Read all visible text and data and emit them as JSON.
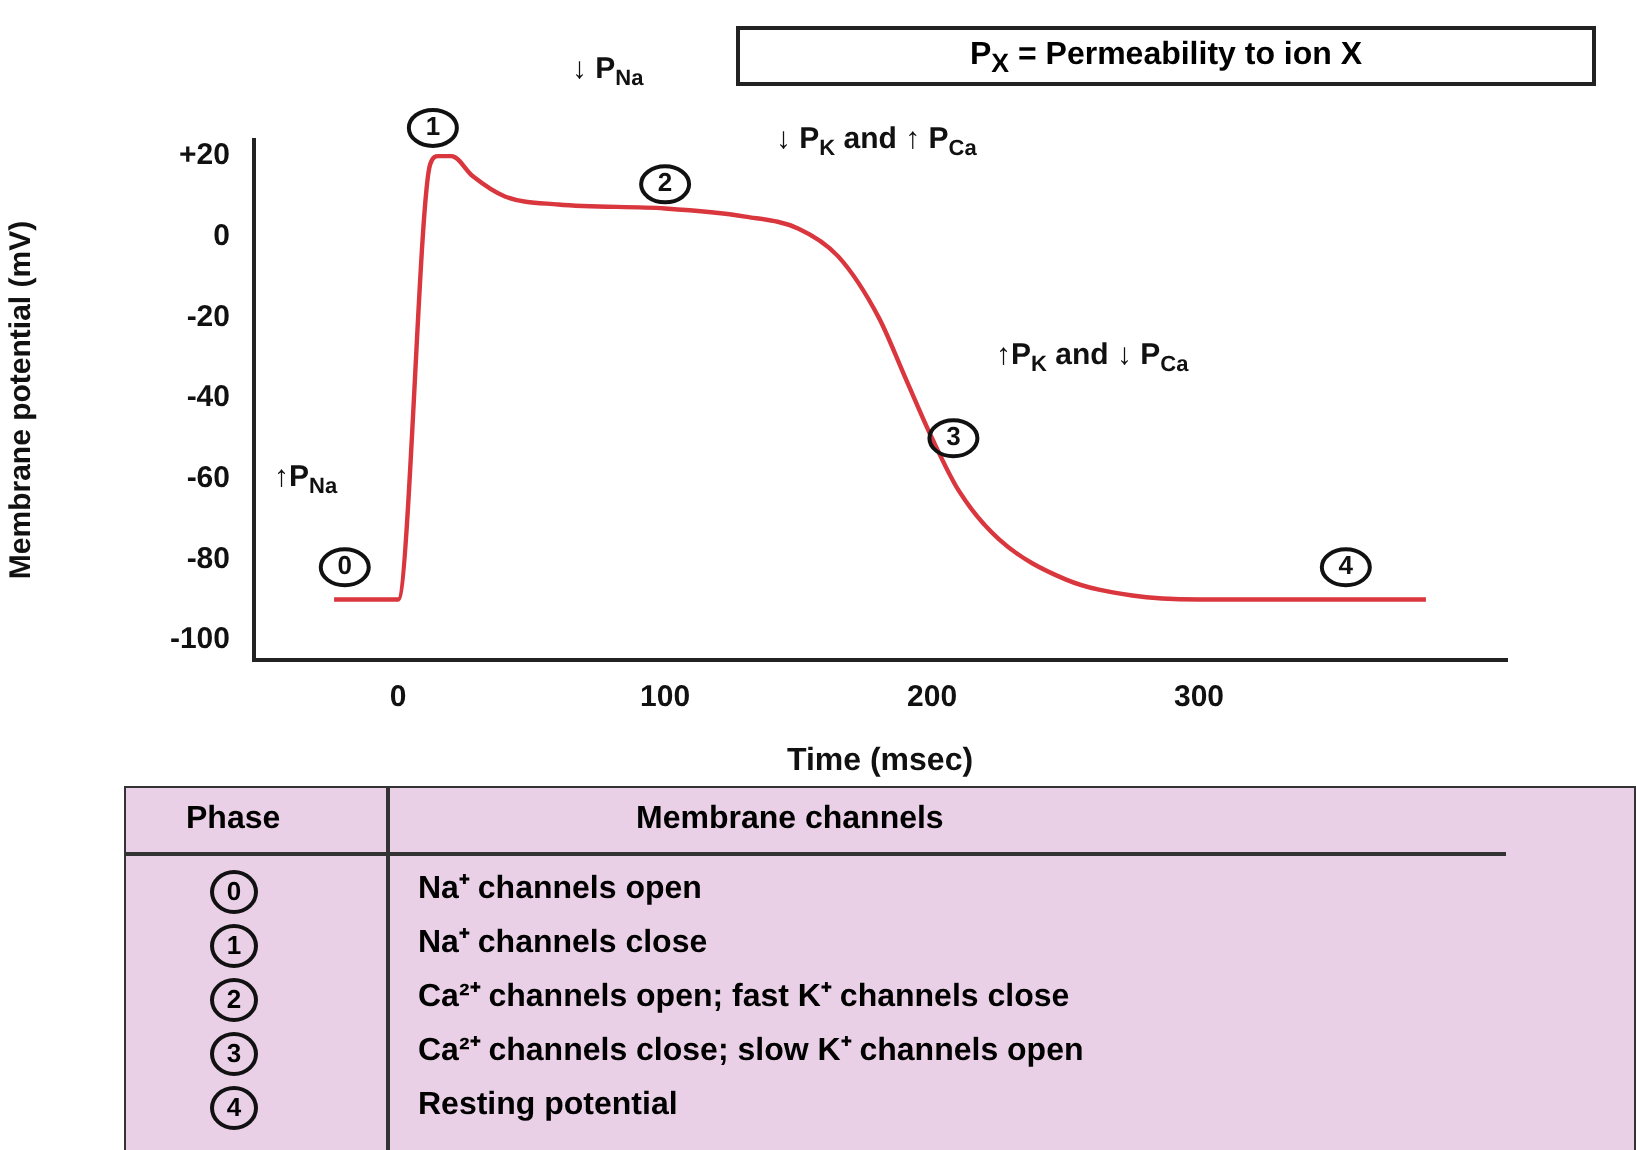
{
  "chart_data": {
    "type": "line",
    "xlabel": "Time (msec)",
    "ylabel": "Membrane potential (mV)",
    "xlim": [
      -54,
      415
    ],
    "ylim": [
      -105,
      24
    ],
    "xticks": [
      0,
      100,
      200,
      300
    ],
    "yticks": [
      {
        "value": 20,
        "label": "+20"
      },
      0,
      -20,
      -40,
      -60,
      -80,
      -100
    ],
    "grid": false,
    "legend": false,
    "marker": "none",
    "line_style": "solid",
    "series": [
      {
        "color": "#d9363e",
        "x": [
          -24,
          0,
          12,
          15,
          20,
          28,
          40,
          60,
          100,
          130,
          150,
          165,
          180,
          190,
          200,
          210,
          225,
          250,
          275,
          300,
          385
        ],
        "values": [
          -90,
          -90,
          18,
          20,
          20,
          15,
          10,
          8,
          7,
          5,
          2,
          -5,
          -20,
          -35,
          -50,
          -63,
          -75,
          -85,
          -89,
          -90,
          -90
        ]
      }
    ],
    "annotations": [
      {
        "text": "0",
        "x": -20,
        "y": -82
      },
      {
        "text": "1",
        "x": 13,
        "y": 27
      },
      {
        "text": "2",
        "x": 100,
        "y": 13
      },
      {
        "text": "3",
        "x": 208,
        "y": -50
      },
      {
        "text": "4",
        "x": 355,
        "y": -82
      },
      "↓ P$_{Na}$",
      "↓ P$_{K}$ and ↑ P$_{Ca}$",
      "↑P$_{K}$ and ↓ P$_{Ca}$",
      "↑P$_{Na}$",
      "P$_{X}$ = Permeability to ion X",
      "Phase",
      "Membrane channels",
      "0",
      "Na⁺ channels open",
      "1",
      "Na⁺ channels close",
      "2",
      "Ca²⁺ channels open; fast K⁺ channels close",
      "3",
      "Ca²⁺ channels close; slow K⁺ channels open",
      "4",
      "Resting potential"
    ]
  }
}
